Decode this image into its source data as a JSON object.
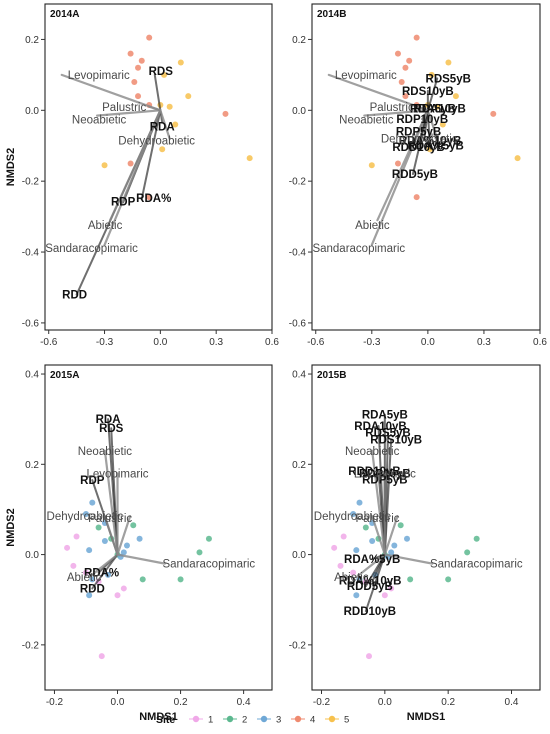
{
  "colors": {
    "site_1": "#f0a8e8",
    "site_2": "#5cb88f",
    "site_3": "#6fa8d6",
    "site_4": "#ef8a6f",
    "site_5": "#f7c14d",
    "vector_dark": "#222222",
    "vector_grey": "#888888"
  },
  "chart_data": [
    {
      "type": "scatter",
      "panel": "2014A",
      "xlabel": "",
      "ylabel": "NMDS2",
      "xlim": [
        -0.62,
        0.6
      ],
      "ylim": [
        -0.62,
        0.3
      ],
      "xticks": [
        "-0.6",
        "-0.3",
        "0.0",
        "0.3",
        "0.6"
      ],
      "yticks": [
        "0.2",
        "0.0",
        "-0.2",
        "-0.4",
        "-0.6"
      ],
      "points": [
        {
          "site": 4,
          "x": -0.06,
          "y": 0.205
        },
        {
          "site": 4,
          "x": -0.16,
          "y": 0.16
        },
        {
          "site": 4,
          "x": -0.1,
          "y": 0.14
        },
        {
          "site": 4,
          "x": -0.14,
          "y": 0.08
        },
        {
          "site": 4,
          "x": -0.12,
          "y": 0.04
        },
        {
          "site": 4,
          "x": -0.06,
          "y": 0.015
        },
        {
          "site": 4,
          "x": 0.35,
          "y": -0.01
        },
        {
          "site": 4,
          "x": -0.16,
          "y": -0.15
        },
        {
          "site": 4,
          "x": -0.06,
          "y": -0.245
        },
        {
          "site": 4,
          "x": -0.12,
          "y": 0.12
        },
        {
          "site": 5,
          "x": 0.11,
          "y": 0.135
        },
        {
          "site": 5,
          "x": 0.02,
          "y": 0.1
        },
        {
          "site": 5,
          "x": 0.15,
          "y": 0.04
        },
        {
          "site": 5,
          "x": 0.05,
          "y": 0.01
        },
        {
          "site": 5,
          "x": 0.08,
          "y": -0.04
        },
        {
          "site": 5,
          "x": 0.01,
          "y": -0.11
        },
        {
          "site": 5,
          "x": -0.3,
          "y": -0.155
        },
        {
          "site": 5,
          "x": 0.48,
          "y": -0.135
        },
        {
          "site": 5,
          "x": 0.0,
          "y": 0.015
        }
      ],
      "vectors": [
        {
          "label": "RDS",
          "x": -0.03,
          "y": 0.1,
          "style": "bold",
          "dx": 6,
          "dy": -4
        },
        {
          "label": "RDA",
          "x": 0.01,
          "y": -0.035,
          "style": "bold",
          "dx": 0,
          "dy": 4
        },
        {
          "label": "RDP",
          "x": -0.2,
          "y": -0.26,
          "style": "bold",
          "dx": 0,
          "dy": -1
        },
        {
          "label": "RDA%",
          "x": -0.1,
          "y": -0.25,
          "style": "bold",
          "dx": 12,
          "dy": -1
        },
        {
          "label": "RDD",
          "x": -0.45,
          "y": -0.52,
          "style": "bold",
          "dx": -2,
          "dy": 0
        },
        {
          "label": "Levopimaric",
          "x": -0.53,
          "y": 0.1,
          "style": "grey",
          "dx": 37,
          "dy": 0
        },
        {
          "label": "Palustric",
          "x": -0.06,
          "y": 0.01,
          "style": "grey",
          "dx": -25,
          "dy": 0
        },
        {
          "label": "Neoabietic",
          "x": -0.34,
          "y": -0.015,
          "style": "grey",
          "dx": 2,
          "dy": 4
        },
        {
          "label": "Dehydroabietic",
          "x": 0.05,
          "y": -0.08,
          "style": "grey",
          "dx": -13,
          "dy": 2
        },
        {
          "label": "Abietic",
          "x": -0.27,
          "y": -0.31,
          "style": "grey",
          "dx": -5,
          "dy": 5
        },
        {
          "label": "Sandaracopimaric",
          "x": -0.3,
          "y": -0.38,
          "style": "grey",
          "dx": -13,
          "dy": 3
        }
      ]
    },
    {
      "type": "scatter",
      "panel": "2014B",
      "xlabel": "",
      "ylabel": "",
      "xlim": [
        -0.62,
        0.6
      ],
      "ylim": [
        -0.62,
        0.3
      ],
      "xticks": [
        "-0.6",
        "-0.3",
        "0.0",
        "0.3",
        "0.6"
      ],
      "yticks": [
        "0.2",
        "0.0",
        "-0.2",
        "-0.4",
        "-0.6"
      ],
      "points": [
        {
          "site": 4,
          "x": -0.06,
          "y": 0.205
        },
        {
          "site": 4,
          "x": -0.16,
          "y": 0.16
        },
        {
          "site": 4,
          "x": -0.1,
          "y": 0.14
        },
        {
          "site": 4,
          "x": -0.14,
          "y": 0.08
        },
        {
          "site": 4,
          "x": -0.12,
          "y": 0.04
        },
        {
          "site": 4,
          "x": -0.06,
          "y": 0.015
        },
        {
          "site": 4,
          "x": 0.35,
          "y": -0.01
        },
        {
          "site": 4,
          "x": -0.16,
          "y": -0.15
        },
        {
          "site": 4,
          "x": -0.06,
          "y": -0.245
        },
        {
          "site": 4,
          "x": -0.12,
          "y": 0.12
        },
        {
          "site": 5,
          "x": 0.11,
          "y": 0.135
        },
        {
          "site": 5,
          "x": 0.02,
          "y": 0.1
        },
        {
          "site": 5,
          "x": 0.15,
          "y": 0.04
        },
        {
          "site": 5,
          "x": 0.05,
          "y": 0.01
        },
        {
          "site": 5,
          "x": 0.08,
          "y": -0.04
        },
        {
          "site": 5,
          "x": 0.01,
          "y": -0.11
        },
        {
          "site": 5,
          "x": -0.3,
          "y": -0.155
        },
        {
          "site": 5,
          "x": 0.48,
          "y": -0.135
        },
        {
          "site": 5,
          "x": 0.0,
          "y": 0.015
        }
      ],
      "vectors": [
        {
          "label": "RDS5yB",
          "x": 0.05,
          "y": 0.09,
          "style": "bold",
          "dx": 11,
          "dy": 0
        },
        {
          "label": "RDS10yB",
          "x": 0.0,
          "y": 0.055,
          "style": "bold",
          "dx": 0,
          "dy": 0
        },
        {
          "label": "RDA5yB",
          "x": 0.0,
          "y": 0.005,
          "style": "bold",
          "dx": 5,
          "dy": 0
        },
        {
          "label": "RDA10yB",
          "x": 0.02,
          "y": 0.005,
          "style": "bold",
          "dx": 8,
          "dy": 0
        },
        {
          "label": "RDP10yB",
          "x": -0.03,
          "y": -0.025,
          "style": "bold",
          "dx": 0,
          "dy": 0
        },
        {
          "label": "RDP5yB",
          "x": -0.05,
          "y": -0.06,
          "style": "bold",
          "dx": 0,
          "dy": 0
        },
        {
          "label": "RDA%10yB",
          "x": -0.02,
          "y": -0.085,
          "style": "bold",
          "dx": 6,
          "dy": 0
        },
        {
          "label": "RDD10yB",
          "x": -0.05,
          "y": -0.095,
          "style": "bold",
          "dx": 0,
          "dy": 3
        },
        {
          "label": "RDA%5yB",
          "x": 0.01,
          "y": -0.1,
          "style": "bold",
          "dx": 6,
          "dy": 0
        },
        {
          "label": "RDD5yB",
          "x": -0.08,
          "y": -0.18,
          "style": "bold",
          "dx": 2,
          "dy": 0
        },
        {
          "label": "Levopimaric",
          "x": -0.53,
          "y": 0.1,
          "style": "grey",
          "dx": 37,
          "dy": 0
        },
        {
          "label": "Palustric",
          "x": -0.06,
          "y": 0.01,
          "style": "grey",
          "dx": -25,
          "dy": 0
        },
        {
          "label": "Neoabietic",
          "x": -0.34,
          "y": -0.015,
          "style": "grey",
          "dx": 2,
          "dy": 4
        },
        {
          "label": "Dehydroabietic",
          "x": 0.05,
          "y": -0.08,
          "style": "grey",
          "dx": -18,
          "dy": 0
        },
        {
          "label": "Abietic",
          "x": -0.27,
          "y": -0.31,
          "style": "grey",
          "dx": -5,
          "dy": 5
        },
        {
          "label": "Sandaracopimaric",
          "x": -0.3,
          "y": -0.38,
          "style": "grey",
          "dx": -13,
          "dy": 3
        }
      ]
    },
    {
      "type": "scatter",
      "panel": "2015A",
      "xlabel": "NMDS1",
      "ylabel": "NMDS2",
      "xlim": [
        -0.23,
        0.49
      ],
      "ylim": [
        -0.3,
        0.42
      ],
      "xticks": [
        "-0.2",
        "0.0",
        "0.2",
        "0.4"
      ],
      "yticks": [
        "0.4",
        "0.2",
        "0.0",
        "-0.2"
      ],
      "points": [
        {
          "site": 1,
          "x": -0.16,
          "y": 0.015
        },
        {
          "site": 1,
          "x": -0.14,
          "y": -0.025
        },
        {
          "site": 1,
          "x": -0.05,
          "y": -0.225
        },
        {
          "site": 1,
          "x": 0.02,
          "y": -0.075
        },
        {
          "site": 1,
          "x": 0.0,
          "y": -0.09
        },
        {
          "site": 1,
          "x": -0.1,
          "y": -0.04
        },
        {
          "site": 1,
          "x": -0.06,
          "y": -0.06
        },
        {
          "site": 1,
          "x": -0.13,
          "y": 0.04
        },
        {
          "site": 2,
          "x": 0.29,
          "y": 0.035
        },
        {
          "site": 2,
          "x": 0.26,
          "y": 0.005
        },
        {
          "site": 2,
          "x": 0.2,
          "y": -0.055
        },
        {
          "site": 2,
          "x": 0.08,
          "y": -0.055
        },
        {
          "site": 2,
          "x": 0.05,
          "y": 0.065
        },
        {
          "site": 2,
          "x": -0.02,
          "y": 0.035
        },
        {
          "site": 2,
          "x": 0.0,
          "y": 0.0
        },
        {
          "site": 2,
          "x": -0.06,
          "y": 0.06
        },
        {
          "site": 3,
          "x": -0.08,
          "y": 0.115
        },
        {
          "site": 3,
          "x": -0.1,
          "y": 0.09
        },
        {
          "site": 3,
          "x": -0.04,
          "y": 0.07
        },
        {
          "site": 3,
          "x": -0.09,
          "y": -0.09
        },
        {
          "site": 3,
          "x": 0.07,
          "y": 0.035
        },
        {
          "site": 3,
          "x": 0.01,
          "y": -0.005
        },
        {
          "site": 3,
          "x": -0.08,
          "y": -0.055
        },
        {
          "site": 3,
          "x": -0.03,
          "y": -0.045
        },
        {
          "site": 3,
          "x": 0.02,
          "y": 0.005
        },
        {
          "site": 3,
          "x": 0.03,
          "y": 0.02
        },
        {
          "site": 3,
          "x": -0.04,
          "y": 0.03
        },
        {
          "site": 3,
          "x": -0.09,
          "y": 0.01
        }
      ],
      "vectors": [
        {
          "label": "RDA",
          "x": -0.03,
          "y": 0.3,
          "style": "bold",
          "dx": 0,
          "dy": 0
        },
        {
          "label": "RDS",
          "x": -0.02,
          "y": 0.28,
          "style": "bold",
          "dx": 0,
          "dy": 0
        },
        {
          "label": "RDP",
          "x": -0.08,
          "y": 0.165,
          "style": "bold",
          "dx": 0,
          "dy": 0
        },
        {
          "label": "RDA%",
          "x": -0.06,
          "y": -0.04,
          "style": "bold",
          "dx": 3,
          "dy": 0
        },
        {
          "label": "RDD",
          "x": -0.08,
          "y": -0.075,
          "style": "bold",
          "dx": 0,
          "dy": 0
        },
        {
          "label": "Neoabietic",
          "x": -0.04,
          "y": 0.23,
          "style": "grey",
          "dx": 0,
          "dy": 0
        },
        {
          "label": "Levopimaric",
          "x": 0.0,
          "y": 0.18,
          "style": "grey",
          "dx": 0,
          "dy": 0
        },
        {
          "label": "Dehydroabietic",
          "x": -0.04,
          "y": 0.085,
          "style": "grey",
          "dx": -20,
          "dy": 0
        },
        {
          "label": "Palustric",
          "x": 0.04,
          "y": 0.085,
          "style": "grey",
          "dx": -20,
          "dy": 2
        },
        {
          "label": "Sandaracopimaric",
          "x": 0.15,
          "y": -0.02,
          "style": "grey",
          "dx": 44,
          "dy": 0
        },
        {
          "label": "Abietic",
          "x": -0.09,
          "y": -0.05,
          "style": "grey",
          "dx": -5,
          "dy": 0
        }
      ]
    },
    {
      "type": "scatter",
      "panel": "2015B",
      "xlabel": "NMDS1",
      "ylabel": "",
      "xlim": [
        -0.23,
        0.49
      ],
      "ylim": [
        -0.3,
        0.42
      ],
      "xticks": [
        "-0.2",
        "0.0",
        "0.2",
        "0.4"
      ],
      "yticks": [
        "0.4",
        "0.2",
        "0.0",
        "-0.2"
      ],
      "points": [
        {
          "site": 1,
          "x": -0.16,
          "y": 0.015
        },
        {
          "site": 1,
          "x": -0.14,
          "y": -0.025
        },
        {
          "site": 1,
          "x": -0.05,
          "y": -0.225
        },
        {
          "site": 1,
          "x": 0.02,
          "y": -0.075
        },
        {
          "site": 1,
          "x": 0.0,
          "y": -0.09
        },
        {
          "site": 1,
          "x": -0.1,
          "y": -0.04
        },
        {
          "site": 1,
          "x": -0.06,
          "y": -0.06
        },
        {
          "site": 1,
          "x": -0.13,
          "y": 0.04
        },
        {
          "site": 2,
          "x": 0.29,
          "y": 0.035
        },
        {
          "site": 2,
          "x": 0.26,
          "y": 0.005
        },
        {
          "site": 2,
          "x": 0.2,
          "y": -0.055
        },
        {
          "site": 2,
          "x": 0.08,
          "y": -0.055
        },
        {
          "site": 2,
          "x": 0.05,
          "y": 0.065
        },
        {
          "site": 2,
          "x": -0.02,
          "y": 0.035
        },
        {
          "site": 2,
          "x": 0.0,
          "y": 0.0
        },
        {
          "site": 2,
          "x": -0.06,
          "y": 0.06
        },
        {
          "site": 3,
          "x": -0.08,
          "y": 0.115
        },
        {
          "site": 3,
          "x": -0.1,
          "y": 0.09
        },
        {
          "site": 3,
          "x": -0.04,
          "y": 0.07
        },
        {
          "site": 3,
          "x": -0.09,
          "y": -0.09
        },
        {
          "site": 3,
          "x": 0.07,
          "y": 0.035
        },
        {
          "site": 3,
          "x": 0.01,
          "y": -0.005
        },
        {
          "site": 3,
          "x": -0.08,
          "y": -0.055
        },
        {
          "site": 3,
          "x": -0.03,
          "y": -0.045
        },
        {
          "site": 3,
          "x": 0.02,
          "y": 0.005
        },
        {
          "site": 3,
          "x": 0.03,
          "y": 0.02
        },
        {
          "site": 3,
          "x": -0.04,
          "y": 0.03
        },
        {
          "site": 3,
          "x": -0.09,
          "y": 0.01
        }
      ],
      "vectors": [
        {
          "label": "RDA5yB",
          "x": 0.0,
          "y": 0.31,
          "style": "bold",
          "dx": 0,
          "dy": 0
        },
        {
          "label": "RDA10yB",
          "x": -0.02,
          "y": 0.285,
          "style": "bold",
          "dx": 2,
          "dy": 0
        },
        {
          "label": "RDS5yB",
          "x": 0.01,
          "y": 0.27,
          "style": "bold",
          "dx": 0,
          "dy": 0
        },
        {
          "label": "RDS10yB",
          "x": 0.02,
          "y": 0.255,
          "style": "bold",
          "dx": 5,
          "dy": 0
        },
        {
          "label": "RDD10yB",
          "x": -0.02,
          "y": 0.185,
          "style": "bold",
          "dx": -4,
          "dy": 0
        },
        {
          "label": "RDP10yB",
          "x": 0.0,
          "y": 0.18,
          "style": "bold",
          "dx": 0,
          "dy": 0
        },
        {
          "label": "RDP5yB",
          "x": 0.0,
          "y": 0.175,
          "style": "bold",
          "dx": 0,
          "dy": 4
        },
        {
          "label": "RDA%5yB",
          "x": -0.04,
          "y": -0.01,
          "style": "bold",
          "dx": 0,
          "dy": 0
        },
        {
          "label": "RDA%10yB",
          "x": -0.04,
          "y": -0.06,
          "style": "bold",
          "dx": -2,
          "dy": -1
        },
        {
          "label": "RDD5yB",
          "x": -0.06,
          "y": -0.07,
          "style": "bold",
          "dx": 4,
          "dy": 0
        },
        {
          "label": "RDD10yB",
          "x": -0.06,
          "y": -0.125,
          "style": "bold",
          "dx": 4,
          "dy": 0
        },
        {
          "label": "Neoabietic",
          "x": -0.04,
          "y": 0.23,
          "style": "grey",
          "dx": 0,
          "dy": 0
        },
        {
          "label": "Levopimaric",
          "x": 0.0,
          "y": 0.18,
          "style": "grey",
          "dx": 0,
          "dy": 0
        },
        {
          "label": "Dehydroabietic",
          "x": -0.04,
          "y": 0.085,
          "style": "grey",
          "dx": -20,
          "dy": 0
        },
        {
          "label": "Palustric",
          "x": 0.04,
          "y": 0.085,
          "style": "grey",
          "dx": -20,
          "dy": 2
        },
        {
          "label": "Sandaracopimaric",
          "x": 0.15,
          "y": -0.02,
          "style": "grey",
          "dx": 44,
          "dy": 0
        },
        {
          "label": "Abietic",
          "x": -0.09,
          "y": -0.05,
          "style": "grey",
          "dx": -5,
          "dy": 0
        }
      ]
    }
  ],
  "legend": {
    "title": "Site",
    "entries": [
      "1",
      "2",
      "3",
      "4",
      "5"
    ],
    "placement": "bottom"
  }
}
